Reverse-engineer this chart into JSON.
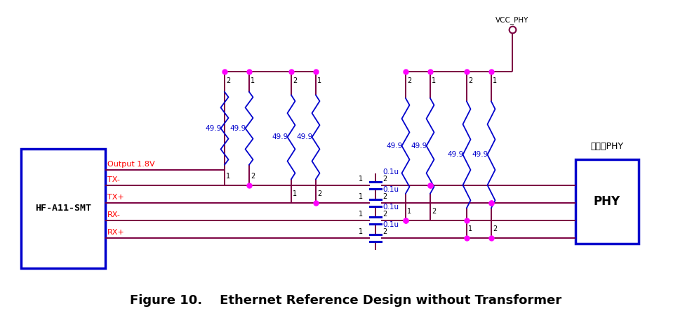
{
  "title": "Figure 10.    Ethernet Reference Design without Transformer",
  "title_fontsize": 13,
  "bg_color": "#ffffff",
  "wire_color": "#7b0040",
  "resistor_color": "#0000cc",
  "cap_color": "#0000cc",
  "box_color": "#0000cc",
  "dot_color": "#ff00ff",
  "hf_label": "HF-A11-SMT",
  "phy_label": "PHY",
  "phy_label2": "用户板PHY",
  "signal_labels": [
    "Output 1.8V",
    "TX-",
    "TX+",
    "RX-",
    "RX+"
  ],
  "resistor_value": "49.9",
  "cap_value": "0.1u",
  "vcc_label": "VCC_PHY"
}
